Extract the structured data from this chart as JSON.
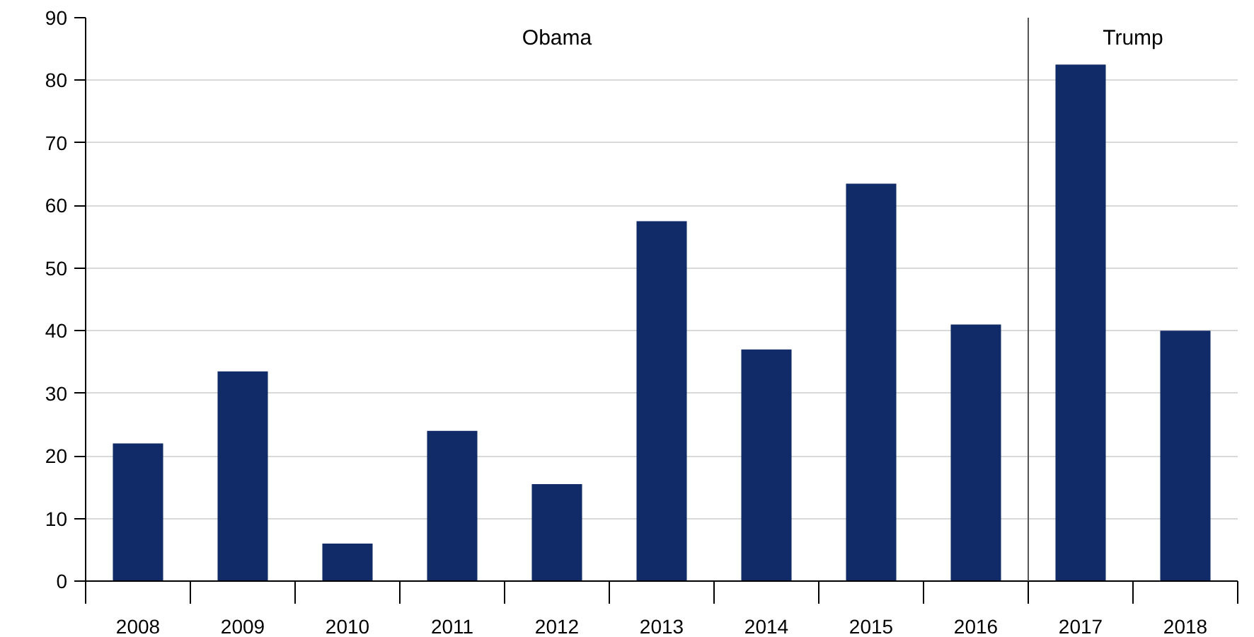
{
  "chart_data": {
    "type": "bar",
    "x": [
      2008,
      2009,
      2010,
      2011,
      2012,
      2013,
      2014,
      2015,
      2016,
      2017,
      2018
    ],
    "values": [
      22,
      33.5,
      6,
      24,
      15.5,
      57.5,
      37,
      63.5,
      41,
      82.5,
      40
    ],
    "color": "#112b69",
    "xlim": [
      2007.5,
      2018.5
    ],
    "xticks": [
      {
        "value": 2007.5,
        "label": null
      },
      2008,
      {
        "value": 2008.5,
        "label": null
      },
      2009,
      {
        "value": 2009.5,
        "label": null
      },
      2010,
      {
        "value": 2010.5,
        "label": null
      },
      2011,
      {
        "value": 2011.5,
        "label": null
      },
      2012,
      {
        "value": 2012.5,
        "label": null
      },
      2013,
      {
        "value": 2013.5,
        "label": null
      },
      2014,
      {
        "value": 2014.5,
        "label": null
      },
      2015,
      {
        "value": 2015.5,
        "label": null
      },
      2016,
      {
        "value": 2016.5,
        "label": null
      },
      2017,
      {
        "value": 2017.5,
        "label": null
      },
      2018,
      {
        "value": 2018.5,
        "label": null
      }
    ],
    "ylim": [
      0,
      90
    ],
    "yticks": [
      0,
      10,
      20,
      30,
      40,
      50,
      60,
      70,
      80,
      90
    ],
    "grid": "y",
    "ref_lines": [
      {
        "axis": "x",
        "value": 2016.5,
        "color": "#555555"
      }
    ],
    "annotations": [
      "Obama",
      "Trump"
    ]
  }
}
